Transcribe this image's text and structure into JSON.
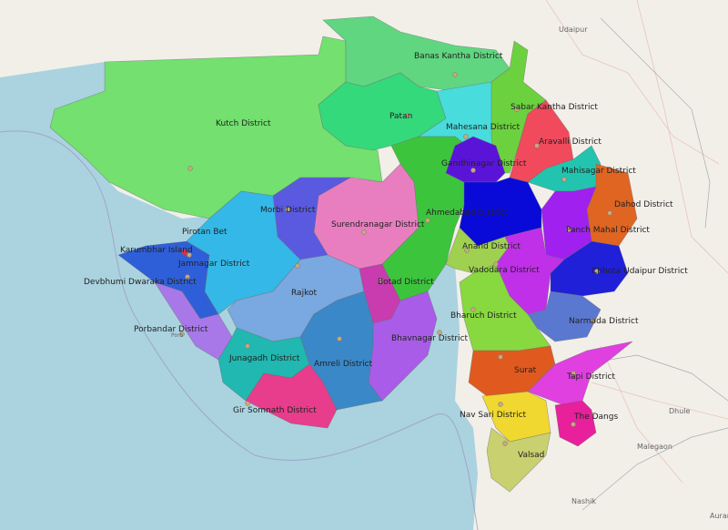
{
  "map": {
    "colors": {
      "sea": "#aad3df",
      "land": "#f2efe9"
    },
    "districts": [
      {
        "id": "kutch",
        "label": "Kutch District",
        "color": "#73e06f"
      },
      {
        "id": "banas-kantha",
        "label": "Banas Kantha District",
        "color": "#60d680"
      },
      {
        "id": "patan",
        "label": "Patan",
        "color": "#34d97c"
      },
      {
        "id": "mahesana",
        "label": "Mahesana District",
        "color": "#48dcdc"
      },
      {
        "id": "sabar-kantha",
        "label": "Sabar Kantha District",
        "color": "#6cd13e"
      },
      {
        "id": "aravalli",
        "label": "Aravalli District",
        "color": "#f04a5c"
      },
      {
        "id": "gandhinagar",
        "label": "Gandhinagar District",
        "color": "#5a14d8"
      },
      {
        "id": "mahisagar",
        "label": "Mahisagar District",
        "color": "#22c4b0"
      },
      {
        "id": "dahod",
        "label": "Dahod District",
        "color": "#e06422"
      },
      {
        "id": "panch-mahal",
        "label": "Panch Mahal District",
        "color": "#a020f0"
      },
      {
        "id": "kheda",
        "label": "",
        "color": "#0a0ad8"
      },
      {
        "id": "ahmedabad",
        "label": "Ahmedabad District",
        "color": "#3dc43d"
      },
      {
        "id": "surendranagar",
        "label": "Surendranagar District",
        "color": "#e87ec0"
      },
      {
        "id": "morbi",
        "label": "Morbi District",
        "color": "#5a5ae0"
      },
      {
        "id": "jamnagar",
        "label": "Jamnagar District",
        "color": "#34b8e8"
      },
      {
        "id": "devbhumi-dwaraka",
        "label": "Devbhumi Dwaraka District",
        "color": "#2f5fd8"
      },
      {
        "id": "porbandar",
        "label": "Porbandar District",
        "color": "#a878e8"
      },
      {
        "id": "rajkot",
        "label": "Rajkot",
        "color": "#7aa8e0"
      },
      {
        "id": "botad",
        "label": "Botad District",
        "color": "#c83cb0"
      },
      {
        "id": "bhavnagar",
        "label": "Bhavnagar District",
        "color": "#a85ce8"
      },
      {
        "id": "amreli",
        "label": "Amreli District",
        "color": "#3a88c8"
      },
      {
        "id": "junagadh",
        "label": "Junagadh District",
        "color": "#20b8b0"
      },
      {
        "id": "gir-somnath",
        "label": "Gir Somnath District",
        "color": "#e83c8c"
      },
      {
        "id": "anand",
        "label": "Anand District",
        "color": "#a0d050"
      },
      {
        "id": "vadodara",
        "label": "Vadodara District",
        "color": "#c030e8"
      },
      {
        "id": "chhota-udaipur",
        "label": "Chhota Udaipur District",
        "color": "#2020d8"
      },
      {
        "id": "narmada",
        "label": "Narmada District",
        "color": "#5a78d0"
      },
      {
        "id": "bharuch",
        "label": "Bharuch District",
        "color": "#88d840"
      },
      {
        "id": "surat",
        "label": "Surat",
        "color": "#e05a20"
      },
      {
        "id": "tapi",
        "label": "Tapi District",
        "color": "#e040e0"
      },
      {
        "id": "the-dangs",
        "label": "The Dangs",
        "color": "#e8209c"
      },
      {
        "id": "navsari",
        "label": "Nav Sari District",
        "color": "#f0d830"
      },
      {
        "id": "valsad",
        "label": "Valsad",
        "color": "#c8d070"
      }
    ],
    "places": [
      {
        "label": "Udaipur"
      },
      {
        "label": "Dhule"
      },
      {
        "label": "Malegaon"
      },
      {
        "label": "Nashik"
      },
      {
        "label": "Auran"
      },
      {
        "label": "Pirotan Bet"
      },
      {
        "label": "Karumbhar Island"
      },
      {
        "label": "Porb"
      }
    ]
  }
}
